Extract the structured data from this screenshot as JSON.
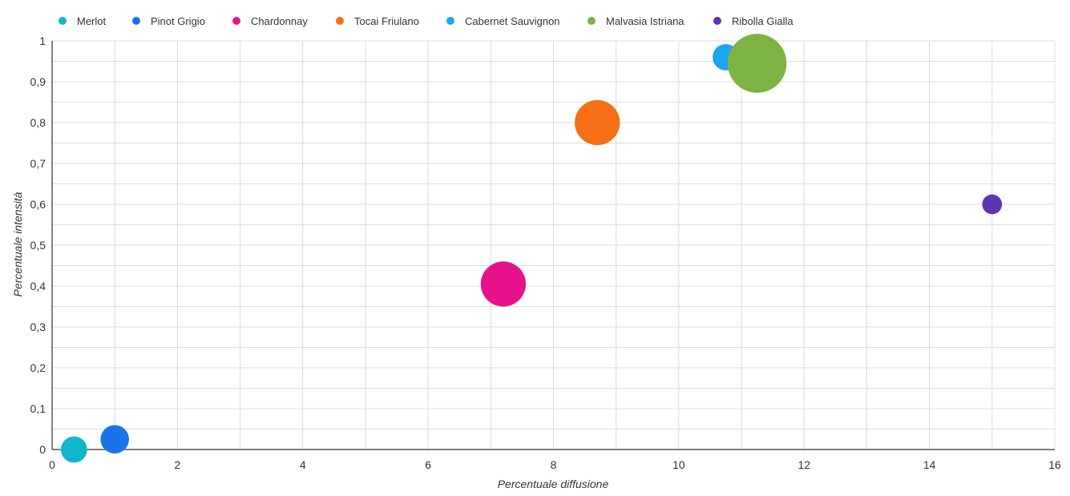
{
  "chart_data": {
    "type": "scatter",
    "subtype": "bubble",
    "title": "",
    "xlabel": "Percentuale diffusione",
    "ylabel": "Percentuale intensità",
    "xlim": [
      0,
      16
    ],
    "ylim": [
      0,
      1
    ],
    "x_ticks": [
      0,
      2,
      4,
      6,
      8,
      10,
      12,
      14,
      16
    ],
    "x_tick_labels": [
      "0",
      "2",
      "4",
      "6",
      "8",
      "10",
      "12",
      "14",
      "16"
    ],
    "y_ticks": [
      0,
      0.1,
      0.2,
      0.3,
      0.4,
      0.5,
      0.6,
      0.7,
      0.8,
      0.9,
      1
    ],
    "y_tick_labels": [
      "0",
      "0,1",
      "0,2",
      "0,3",
      "0,4",
      "0,5",
      "0,6",
      "0,7",
      "0,8",
      "0,9",
      "1"
    ],
    "grid": true,
    "legend_position": "top-left",
    "series": [
      {
        "name": "Merlot",
        "color": "#12B5CB",
        "x": 0.35,
        "y": 0.0,
        "size": 0.3
      },
      {
        "name": "Pinot Grigio",
        "color": "#1A73E8",
        "x": 1.0,
        "y": 0.025,
        "size": 0.35
      },
      {
        "name": "Chardonnay",
        "color": "#E8118C",
        "x": 7.2,
        "y": 0.405,
        "size": 0.88
      },
      {
        "name": "Tocai Friulano",
        "color": "#F46F15",
        "x": 8.7,
        "y": 0.8,
        "size": 0.88
      },
      {
        "name": "Cabernet Sauvignon",
        "color": "#1AA7EC",
        "x": 10.75,
        "y": 0.96,
        "size": 0.3
      },
      {
        "name": "Malvasia Istriana",
        "color": "#7CB342",
        "x": 11.25,
        "y": 0.945,
        "size": 1.5
      },
      {
        "name": "Ribolla Gialla",
        "color": "#5E35B1",
        "x": 15.0,
        "y": 0.6,
        "size": 0.17
      }
    ]
  }
}
